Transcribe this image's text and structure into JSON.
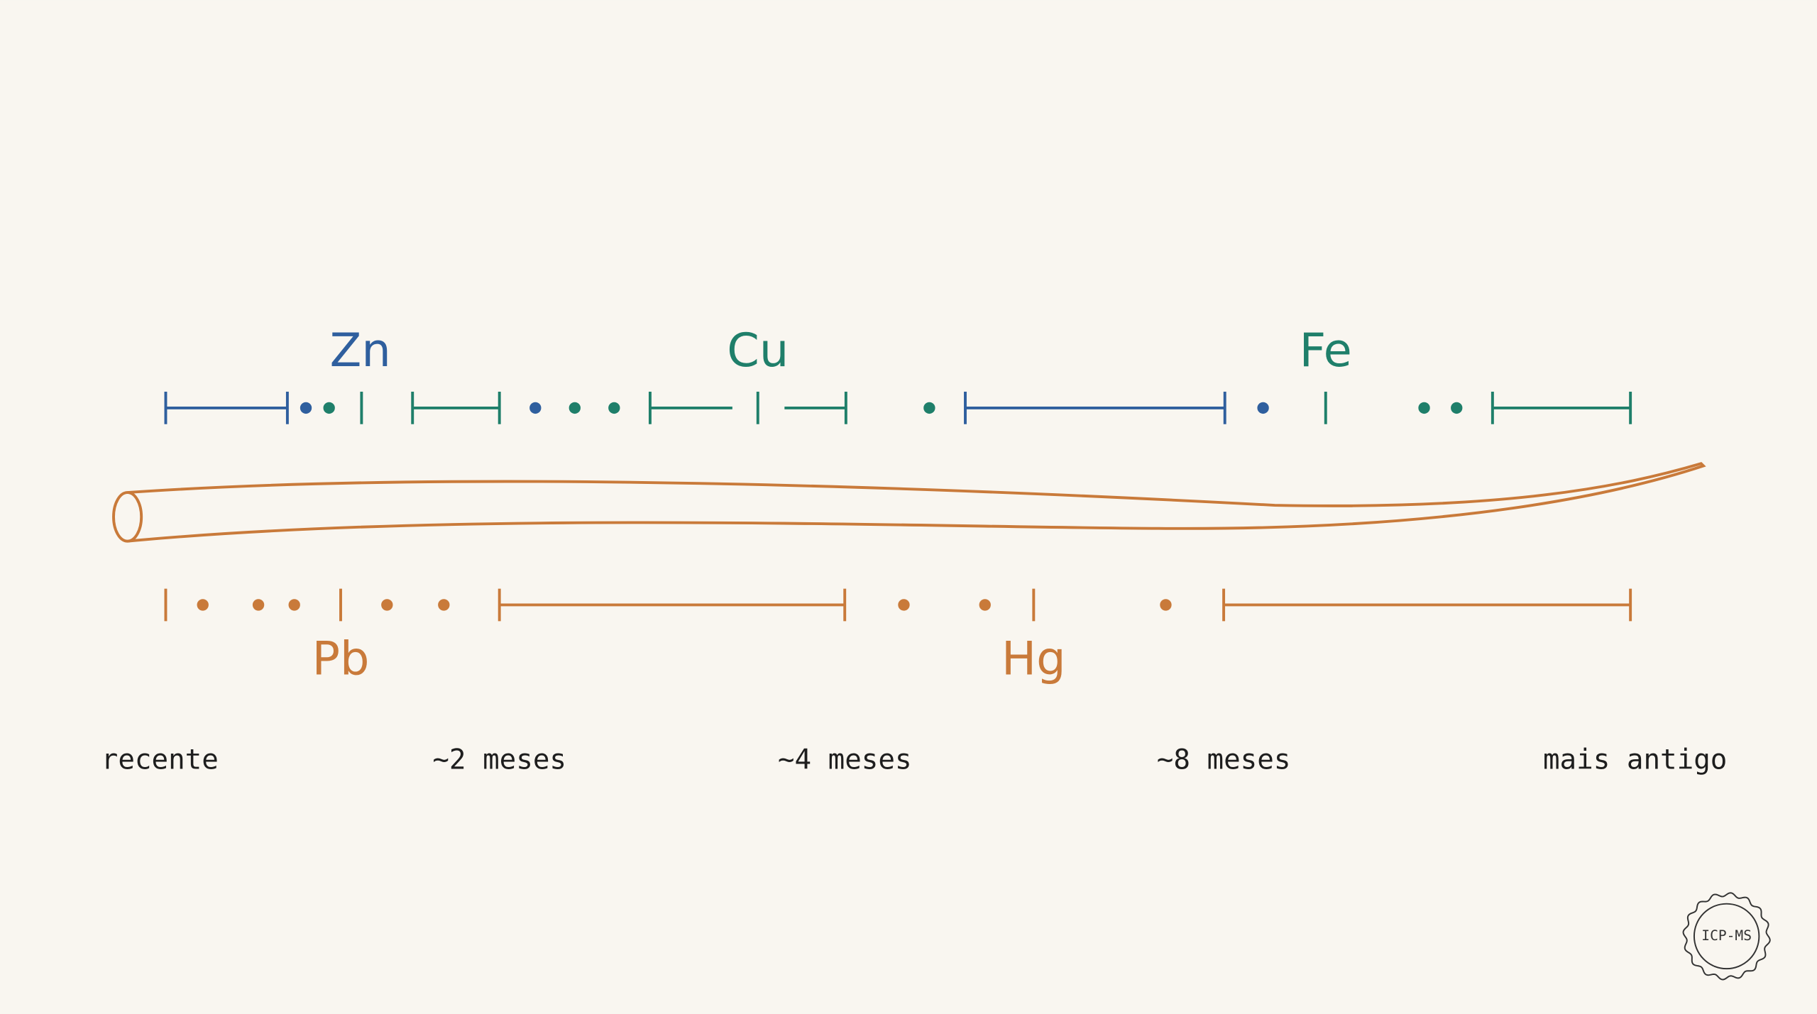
{
  "elements": [
    "Zn",
    "Cu",
    "Fe",
    "Pb",
    "Hg"
  ],
  "time_axis": [
    "recente",
    "~2 meses",
    "~4 meses",
    "~8 meses",
    "mais antigo"
  ],
  "badge": "ICP-MS"
}
